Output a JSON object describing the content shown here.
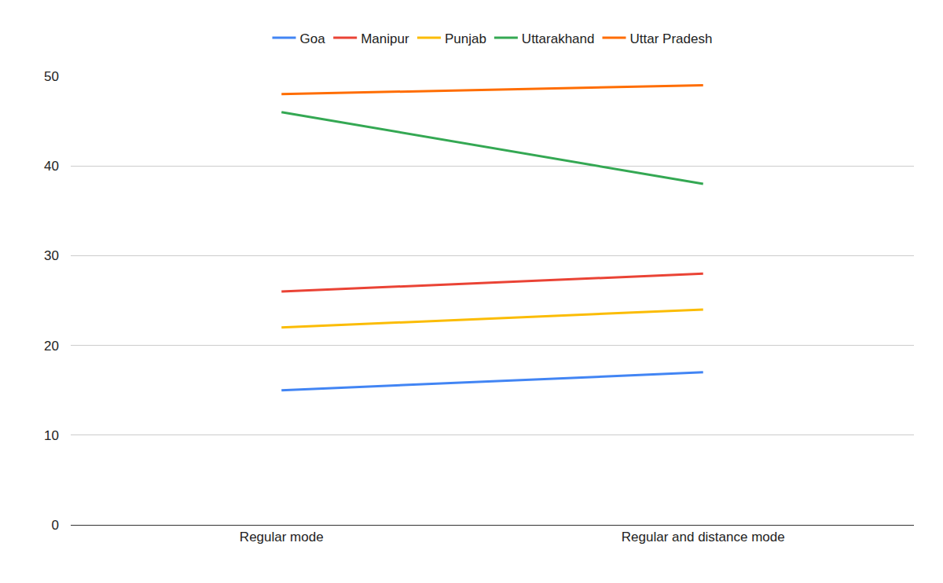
{
  "chart_data": {
    "type": "line",
    "categories": [
      "Regular mode",
      "Regular and distance mode"
    ],
    "series": [
      {
        "name": "Goa",
        "color": "#4285f4",
        "values": [
          15,
          17
        ]
      },
      {
        "name": "Manipur",
        "color": "#ea4335",
        "values": [
          26,
          28
        ]
      },
      {
        "name": "Punjab",
        "color": "#fbbc04",
        "values": [
          22,
          24
        ]
      },
      {
        "name": "Uttarakhand",
        "color": "#34a853",
        "values": [
          46,
          38
        ]
      },
      {
        "name": "Uttar Pradesh",
        "color": "#ff6d01",
        "values": [
          48,
          49
        ]
      }
    ],
    "ylim": [
      0,
      50
    ],
    "yticks": [
      0,
      10,
      20,
      30,
      40,
      50
    ],
    "grid": true,
    "legend": "top"
  }
}
